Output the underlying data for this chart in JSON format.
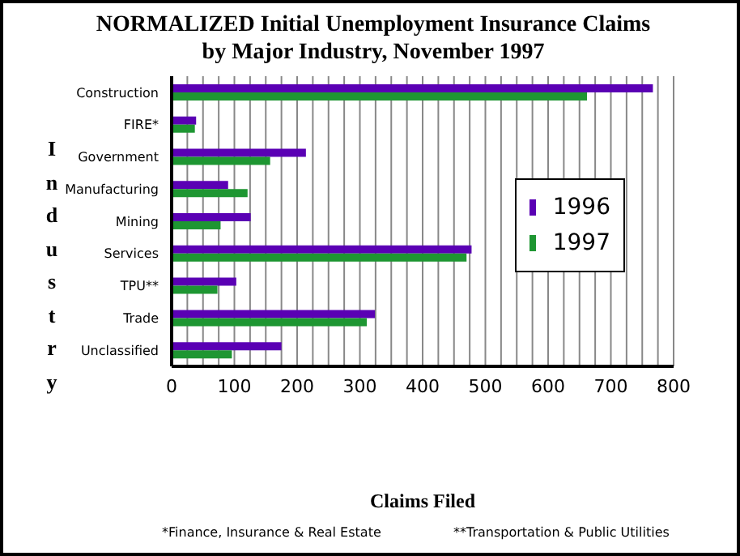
{
  "chart_data": {
    "type": "bar",
    "orientation": "horizontal",
    "title": "NORMALIZED Initial Unemployment Insurance Claims",
    "subtitle": "by Major Industry, November 1997",
    "xlabel": "Claims Filed",
    "ylabel": "Industry",
    "categories": [
      "Construction",
      "FIRE*",
      "Government",
      "Manufacturing",
      "Mining",
      "Services",
      "TPU**",
      "Trade",
      "Unclassified"
    ],
    "series": [
      {
        "name": "1996",
        "color": "#5a00b4",
        "values": [
          767,
          39,
          214,
          90,
          126,
          478,
          103,
          324,
          175
        ]
      },
      {
        "name": "1997",
        "color": "#1e9632",
        "values": [
          662,
          37,
          157,
          121,
          78,
          470,
          73,
          311,
          96
        ]
      }
    ],
    "xlim": [
      0,
      800
    ],
    "xticks": [
      0,
      {
        "value": 25,
        "label": null
      },
      {
        "value": 50,
        "label": null
      },
      {
        "value": 75,
        "label": null
      },
      100,
      {
        "value": 125,
        "label": null
      },
      {
        "value": 150,
        "label": null
      },
      {
        "value": 175,
        "label": null
      },
      200,
      {
        "value": 225,
        "label": null
      },
      {
        "value": 250,
        "label": null
      },
      {
        "value": 275,
        "label": null
      },
      300,
      {
        "value": 325,
        "label": null
      },
      {
        "value": 350,
        "label": null
      },
      {
        "value": 375,
        "label": null
      },
      400,
      {
        "value": 425,
        "label": null
      },
      {
        "value": 450,
        "label": null
      },
      {
        "value": 475,
        "label": null
      },
      500,
      {
        "value": 525,
        "label": null
      },
      {
        "value": 550,
        "label": null
      },
      {
        "value": 575,
        "label": null
      },
      600,
      {
        "value": 625,
        "label": null
      },
      {
        "value": 650,
        "label": null
      },
      {
        "value": 675,
        "label": null
      },
      700,
      {
        "value": 725,
        "label": null
      },
      {
        "value": 750,
        "label": null
      },
      {
        "value": 775,
        "label": null
      },
      800
    ],
    "grid": "x",
    "legend": "right",
    "annotations": [
      "*Finance, Insurance & Real Estate",
      "**Transportation & Public Utilities"
    ]
  }
}
